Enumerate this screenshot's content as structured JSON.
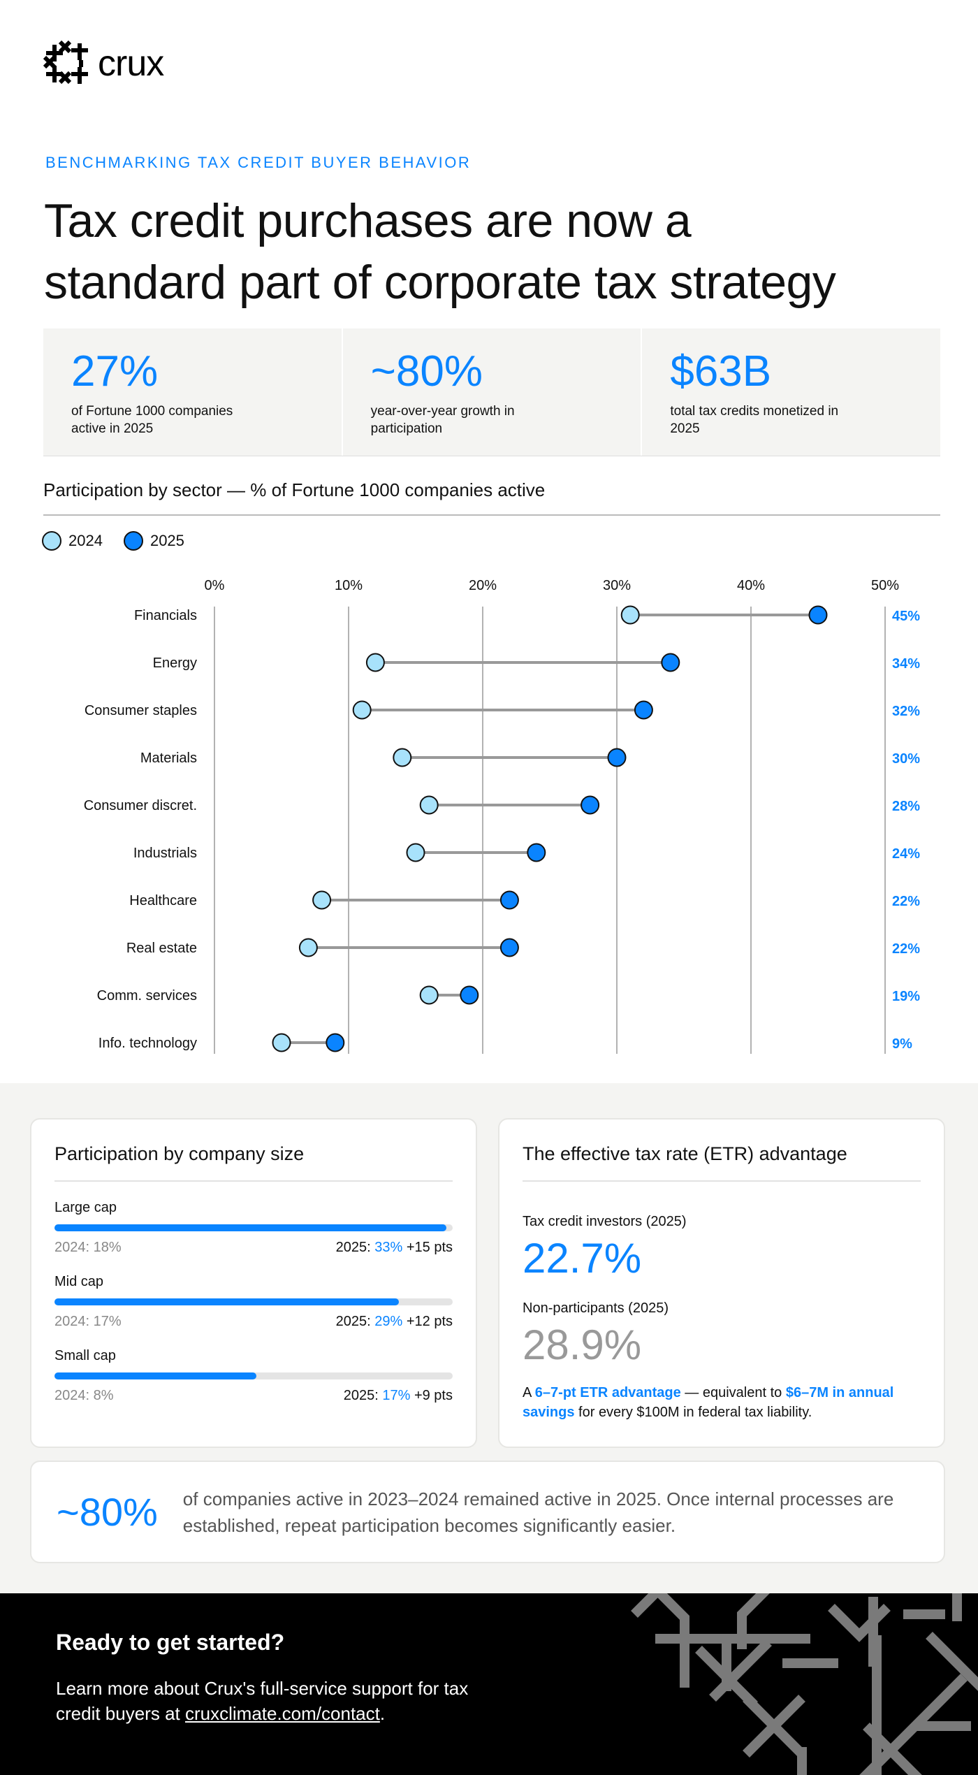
{
  "brand": {
    "name": "crux"
  },
  "header": {
    "eyebrow": "BENCHMARKING TAX CREDIT BUYER BEHAVIOR",
    "title_line1": "Tax credit purchases are now a",
    "title_line2": "standard part of corporate tax strategy"
  },
  "stats": [
    {
      "value": "27%",
      "label": "of Fortune 1000 companies active in 2025"
    },
    {
      "value": "~80%",
      "label": "year-over-year growth in participation"
    },
    {
      "value": "$63B",
      "label": "total tax credits monetized in 2025"
    }
  ],
  "colors": {
    "accent": "#0a84ff",
    "y2024": "#a8e2fb",
    "y2025": "#0a84ff",
    "connector": "#999999"
  },
  "chart_data": {
    "type": "dumbbell",
    "title": "Participation by sector — % of Fortune 1000 companies active",
    "legend": [
      "2024",
      "2025"
    ],
    "legend_placement": "top-left",
    "xlim": [
      0,
      50
    ],
    "xticks": [
      "0%",
      "10%",
      "20%",
      "30%",
      "40%",
      "50%"
    ],
    "grid": true,
    "categories": [
      "Financials",
      "Energy",
      "Consumer staples",
      "Materials",
      "Consumer discret.",
      "Industrials",
      "Healthcare",
      "Real estate",
      "Comm. services",
      "Info. technology"
    ],
    "series": [
      {
        "name": "2024",
        "values": [
          31,
          12,
          11,
          14,
          16,
          15,
          8,
          7,
          16,
          5
        ]
      },
      {
        "name": "2025",
        "values": [
          45,
          34,
          32,
          30,
          28,
          24,
          22,
          22,
          19,
          9
        ]
      }
    ],
    "value_labels": [
      "45%",
      "34%",
      "32%",
      "30%",
      "28%",
      "24%",
      "22%",
      "22%",
      "19%",
      "9%"
    ]
  },
  "size": {
    "title": "Participation by company size",
    "rows": [
      {
        "name": "Large cap",
        "prev": "2024: 18%",
        "cur_prefix": "2025: ",
        "cur": "33%",
        "delta": " +15 pts",
        "fill": 33
      },
      {
        "name": "Mid cap",
        "prev": "2024: 17%",
        "cur_prefix": "2025: ",
        "cur": "29%",
        "delta": " +12 pts",
        "fill": 29
      },
      {
        "name": "Small cap",
        "prev": "2024: 8%",
        "cur_prefix": "2025: ",
        "cur": "17%",
        "delta": " +9 pts",
        "fill": 17
      }
    ]
  },
  "etr": {
    "title": "The effective tax rate (ETR) advantage",
    "investors_label": "Tax credit investors (2025)",
    "investors_value": "22.7%",
    "non_label": "Non-participants (2025)",
    "non_value": "28.9%",
    "note_a": "A ",
    "note_b": "6–7-pt ETR advantage",
    "note_c": " — equivalent to ",
    "note_d": "$6–7M in annual savings",
    "note_e": " for every $100M in federal tax liability."
  },
  "retention": {
    "value": "~80%",
    "text": "of companies active in 2023–2024 remained active in 2025. Once internal processes are established, repeat participation becomes significantly easier."
  },
  "footer": {
    "heading": "Ready to get started?",
    "text": "Learn more about Crux's full-service support for tax credit buyers at ",
    "link": "cruxclimate.com/contact",
    "end": "."
  }
}
